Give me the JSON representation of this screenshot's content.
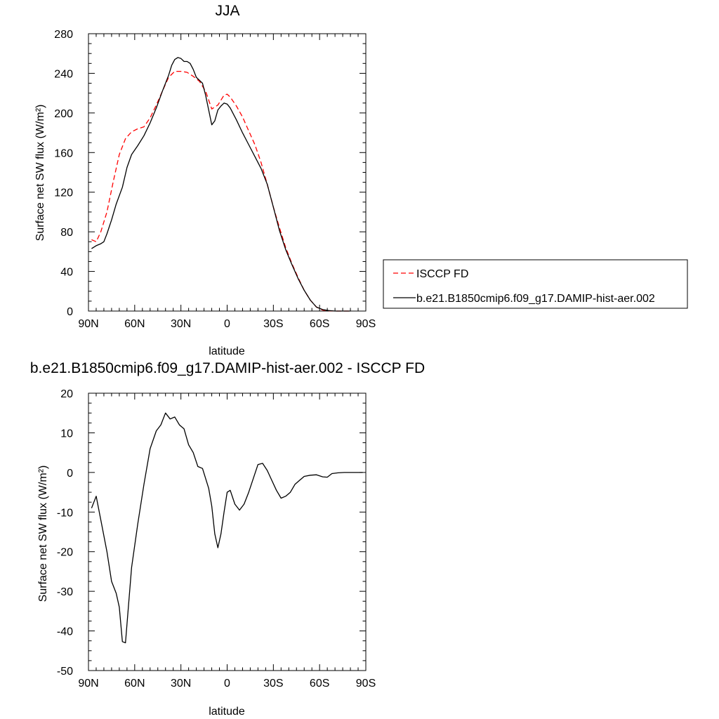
{
  "chart_data": [
    {
      "type": "line",
      "title": "JJA",
      "xlabel": "latitude",
      "ylabel": "Surface net SW flux (W/m²)",
      "xlim": [
        90,
        -90
      ],
      "ylim": [
        0,
        280
      ],
      "x_ticks": [
        90,
        60,
        30,
        0,
        -30,
        -60,
        -90
      ],
      "x_tick_labels": [
        "90N",
        "60N",
        "30N",
        "0",
        "30S",
        "60S",
        "90S"
      ],
      "y_ticks": [
        0,
        40,
        80,
        120,
        160,
        200,
        240,
        280
      ],
      "y_tick_labels": [
        "0",
        "40",
        "80",
        "120",
        "160",
        "200",
        "240",
        "280"
      ],
      "grid": false,
      "legend_position": "right",
      "series": [
        {
          "name": "ISCCP FD",
          "color": "#ff0000",
          "dash": "dashed",
          "x": [
            88,
            85,
            82,
            78,
            74,
            70,
            66,
            62,
            58,
            54,
            50,
            46,
            42,
            38,
            34,
            30,
            26,
            22,
            18,
            14,
            10,
            6,
            2,
            0,
            -2,
            -6,
            -10,
            -14,
            -18,
            -22,
            -26,
            -30,
            -34,
            -38,
            -42,
            -46,
            -50,
            -54,
            -58,
            -62,
            -66,
            -70,
            -74,
            -78,
            -80
          ],
          "values": [
            72,
            70,
            80,
            100,
            130,
            158,
            174,
            181,
            184,
            186,
            195,
            208,
            222,
            236,
            242,
            242,
            241,
            237,
            232,
            222,
            204,
            208,
            218,
            219,
            216,
            207,
            196,
            182,
            168,
            150,
            128,
            105,
            84,
            64,
            48,
            34,
            21,
            11,
            4,
            1,
            0.3,
            0,
            0,
            0,
            0
          ]
        },
        {
          "name": "b.e21.B1850cmip6.f09_g17.DAMIP-hist-aer.002",
          "color": "#000000",
          "dash": "solid",
          "x": [
            88,
            85,
            82,
            80,
            78,
            75,
            72,
            68,
            65,
            62,
            58,
            54,
            50,
            46,
            42,
            38,
            36,
            34,
            32,
            30,
            28,
            26,
            24,
            22,
            20,
            18,
            16,
            14,
            12,
            10,
            8,
            6,
            4,
            2,
            0,
            -2,
            -6,
            -10,
            -14,
            -18,
            -22,
            -26,
            -30,
            -34,
            -38,
            -42,
            -46,
            -50,
            -54,
            -58,
            -62,
            -66,
            -70,
            -74,
            -78,
            -80
          ],
          "values": [
            63,
            66,
            68,
            70,
            78,
            92,
            108,
            125,
            145,
            158,
            167,
            177,
            190,
            205,
            222,
            238,
            248,
            254,
            256,
            255,
            252,
            252,
            250,
            244,
            236,
            233,
            230,
            218,
            203,
            188,
            192,
            203,
            207,
            210,
            209,
            205,
            193,
            180,
            168,
            156,
            144,
            128,
            105,
            81,
            62,
            47,
            33,
            21,
            11,
            4,
            1.5,
            0.5,
            0,
            0,
            0,
            0
          ]
        }
      ]
    },
    {
      "type": "line",
      "title": "b.e21.B1850cmip6.f09_g17.DAMIP-hist-aer.002 - ISCCP FD",
      "xlabel": "latitude",
      "ylabel": "Surface net SW flux (W/m²)",
      "xlim": [
        90,
        -90
      ],
      "ylim": [
        -50,
        20
      ],
      "x_ticks": [
        90,
        60,
        30,
        0,
        -30,
        -60,
        -90
      ],
      "x_tick_labels": [
        "90N",
        "60N",
        "30N",
        "0",
        "30S",
        "60S",
        "90S"
      ],
      "y_ticks": [
        -50,
        -40,
        -30,
        -20,
        -10,
        0,
        10,
        20
      ],
      "y_tick_labels": [
        "-50",
        "-40",
        "-30",
        "-20",
        "-10",
        "0",
        "10",
        "20"
      ],
      "grid": false,
      "series": [
        {
          "color": "#000000",
          "dash": "solid",
          "x": [
            88,
            85,
            82,
            78,
            75,
            72,
            70,
            68,
            66,
            62,
            58,
            54,
            50,
            46,
            43,
            40,
            37,
            34,
            31,
            28,
            25,
            22,
            19,
            16,
            14,
            12,
            10,
            8,
            6,
            4,
            2,
            0,
            -2,
            -5,
            -8,
            -11,
            -14,
            -17,
            -20,
            -23,
            -26,
            -29,
            -32,
            -35,
            -38,
            -41,
            -44,
            -47,
            -50,
            -54,
            -58,
            -62,
            -65,
            -68,
            -72,
            -76,
            -80,
            -84,
            -88
          ],
          "values": [
            -9,
            -6,
            -12,
            -20,
            -27.5,
            -30.5,
            -34,
            -42.7,
            -43,
            -24,
            -13,
            -3,
            6,
            10.5,
            12,
            15,
            13.5,
            14,
            12,
            11,
            7,
            5,
            1.5,
            1,
            -1.5,
            -4,
            -8.5,
            -15.5,
            -19,
            -15.5,
            -10,
            -5,
            -4.5,
            -8,
            -9.5,
            -8,
            -5,
            -1.5,
            2,
            2.3,
            0.5,
            -2,
            -4.5,
            -6.5,
            -6,
            -5,
            -3,
            -2,
            -1,
            -0.7,
            -0.6,
            -1.1,
            -1.2,
            -0.3,
            -0.1,
            0,
            0,
            0,
            0
          ]
        }
      ]
    }
  ]
}
